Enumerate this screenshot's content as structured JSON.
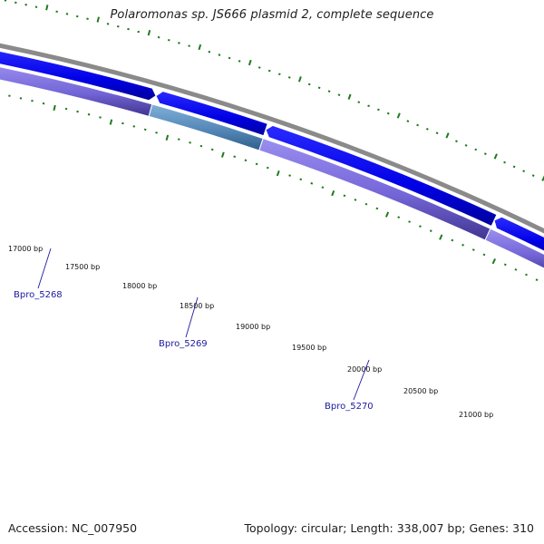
{
  "title": "Polaromonas sp. JS666 plasmid 2, complete sequence",
  "footer": {
    "accession": "Accession: NC_007950",
    "summary": "Topology: circular; Length: 338,007 bp; Genes: 310"
  },
  "colors": {
    "background": "#ffffff",
    "backbone": "#8a8a8a",
    "forward_cds": "#0000ee",
    "reverse_cds": "#7a6fd6",
    "highlight_cds": "#5b8fc0",
    "tick": "#1f7a1f",
    "gene_label": "#1a1aa0"
  },
  "map": {
    "scale_labels": [
      "17000 bp",
      "17500 bp",
      "18000 bp",
      "18500 bp",
      "19000 bp",
      "19500 bp",
      "20000 bp",
      "20500 bp",
      "21000 bp"
    ],
    "gene_labels": [
      "Bpro_5268",
      "Bpro_5269",
      "Bpro_5270"
    ]
  }
}
